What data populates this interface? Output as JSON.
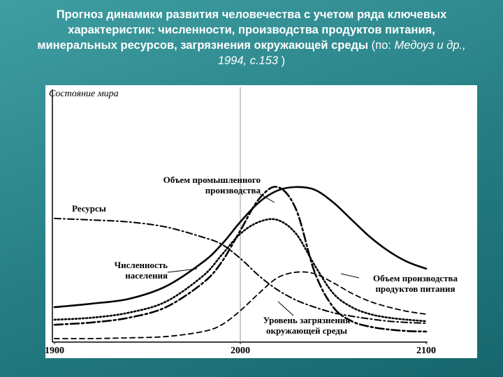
{
  "chart_data": {
    "type": "line",
    "title": "Прогноз динамики развития человечества с учетом ряда ключевых характеристик: численности, производства продуктов питания, минеральных ресурсов, загрязнения окружающей среды",
    "citation": [
      "(по: ",
      "Медоуз и др., 1994, с.153",
      " )"
    ],
    "y_label": "Состояние мира",
    "x": [
      1900,
      1920,
      1940,
      1960,
      1980,
      1990,
      2000,
      2010,
      2020,
      2030,
      2040,
      2050,
      2060,
      2070,
      2080,
      2090,
      2100
    ],
    "xlim": [
      1900,
      2100
    ],
    "xticks": [
      1900,
      2000,
      2100
    ],
    "ylim": [
      0,
      100
    ],
    "vline": 2000,
    "series": [
      {
        "name": "Ресурсы",
        "color": "#000000",
        "style": "dashdot",
        "values": [
          49.2,
          48.6,
          47.8,
          45.8,
          41.7,
          38.9,
          33.3,
          26.4,
          20.8,
          16.7,
          13.9,
          11.7,
          10.3,
          9.2,
          8.3,
          7.8,
          7.5
        ]
      },
      {
        "name": "Численность населения",
        "color": "#000000",
        "style": "solid",
        "values": [
          13.9,
          15.3,
          17.2,
          22.2,
          31.9,
          38.9,
          47.8,
          55.6,
          60.3,
          61.7,
          60.6,
          55.6,
          48.6,
          41.7,
          36.1,
          31.9,
          29.2
        ]
      },
      {
        "name": "Объем промышленного производства",
        "color": "#000000",
        "style": "longdash",
        "values": [
          6.9,
          7.8,
          9.7,
          13.9,
          23.6,
          31.9,
          44.4,
          56.9,
          61.7,
          52.8,
          27.8,
          13.9,
          8.3,
          6.1,
          5.0,
          4.4,
          4.2
        ]
      },
      {
        "name": "Объем производства продуктов питания",
        "color": "#000000",
        "style": "dotted",
        "values": [
          8.9,
          9.7,
          11.7,
          16.1,
          26.4,
          34.7,
          43.1,
          47.8,
          48.6,
          43.1,
          30.6,
          19.4,
          13.9,
          11.1,
          9.7,
          8.9,
          8.3
        ]
      },
      {
        "name": "Уровень загрязнения окружающей среды",
        "color": "#000000",
        "style": "dashed",
        "values": [
          1.4,
          1.4,
          1.7,
          2.2,
          4.2,
          6.9,
          12.5,
          19.4,
          25.6,
          27.8,
          27.2,
          23.6,
          19.4,
          16.1,
          13.9,
          12.2,
          11.1
        ]
      }
    ]
  }
}
